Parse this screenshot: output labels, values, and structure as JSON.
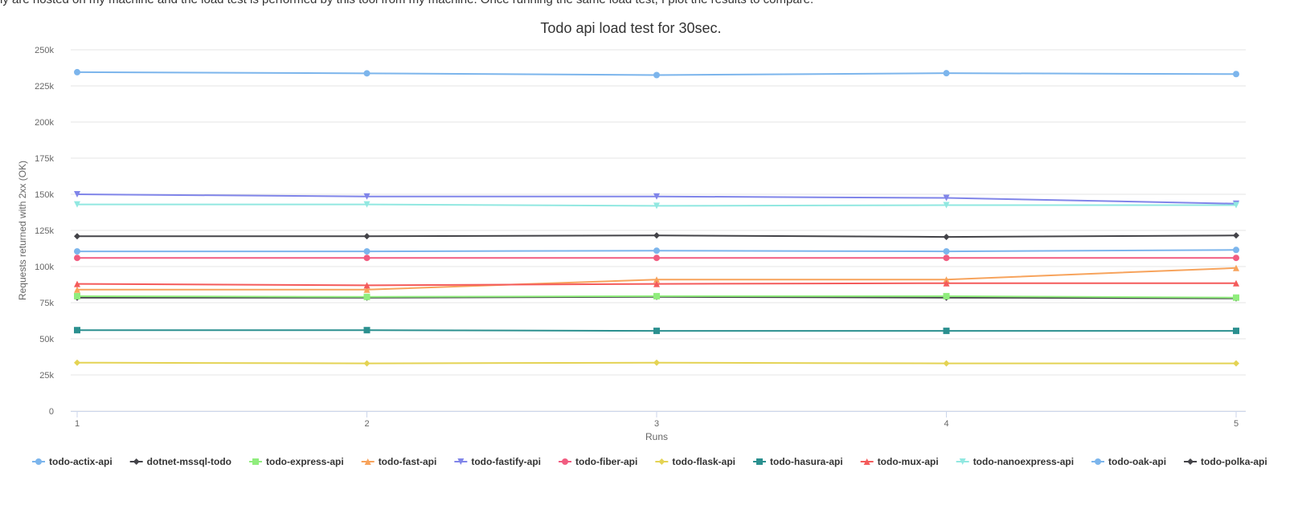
{
  "page": {
    "clipped_text": "ly are hosted on my machine and the load test is performed by this tool from my machine. Once running the same load test, I plot the results to compare."
  },
  "chart_data": {
    "type": "line",
    "title": "Todo api load test for 30sec.",
    "xlabel": "Runs",
    "ylabel": "Requests returned with 2xx (OK)",
    "x": [
      1,
      2,
      3,
      4,
      5
    ],
    "ylim": [
      0,
      250000
    ],
    "yticks": [
      0,
      25000,
      50000,
      75000,
      100000,
      125000,
      150000,
      175000,
      200000,
      225000,
      250000
    ],
    "ytick_labels": [
      "0",
      "25k",
      "50k",
      "75k",
      "100k",
      "125k",
      "150k",
      "175k",
      "200k",
      "225k",
      "250k"
    ],
    "grid": "horizontal",
    "legend_position": "bottom",
    "series": [
      {
        "name": "todo-actix-api",
        "color": "#7cb5ec",
        "marker": "circle",
        "values": [
          234500,
          233700,
          232500,
          233800,
          233200
        ]
      },
      {
        "name": "dotnet-mssql-todo",
        "color": "#434348",
        "marker": "diamond",
        "values": [
          78500,
          78500,
          79000,
          78500,
          78000
        ]
      },
      {
        "name": "todo-express-api",
        "color": "#90ed7d",
        "marker": "square",
        "values": [
          79500,
          79000,
          79500,
          79500,
          78500
        ]
      },
      {
        "name": "todo-fast-api",
        "color": "#f7a35c",
        "marker": "triangle",
        "values": [
          84000,
          84000,
          91000,
          91000,
          99000
        ]
      },
      {
        "name": "todo-fastify-api",
        "color": "#8085e9",
        "marker": "triangle-down",
        "values": [
          150000,
          148500,
          148500,
          147500,
          143500
        ]
      },
      {
        "name": "todo-fiber-api",
        "color": "#f15c80",
        "marker": "circle",
        "values": [
          106000,
          106000,
          106000,
          106000,
          106000
        ]
      },
      {
        "name": "todo-flask-api",
        "color": "#e4d354",
        "marker": "diamond",
        "values": [
          33500,
          33000,
          33500,
          33000,
          33000
        ]
      },
      {
        "name": "todo-hasura-api",
        "color": "#2b908f",
        "marker": "square",
        "values": [
          56000,
          56000,
          55500,
          55500,
          55500
        ]
      },
      {
        "name": "todo-mux-api",
        "color": "#f45b5b",
        "marker": "triangle",
        "values": [
          88000,
          87000,
          88000,
          88500,
          88500
        ]
      },
      {
        "name": "todo-nanoexpress-api",
        "color": "#91e8e1",
        "marker": "triangle-down",
        "values": [
          143000,
          143000,
          142000,
          142500,
          142500
        ]
      },
      {
        "name": "todo-oak-api",
        "color": "#7cb5ec",
        "marker": "circle",
        "values": [
          110500,
          110500,
          111000,
          110500,
          111500
        ]
      },
      {
        "name": "todo-polka-api",
        "color": "#434348",
        "marker": "diamond",
        "values": [
          121000,
          121000,
          121500,
          120500,
          121500
        ]
      }
    ]
  }
}
